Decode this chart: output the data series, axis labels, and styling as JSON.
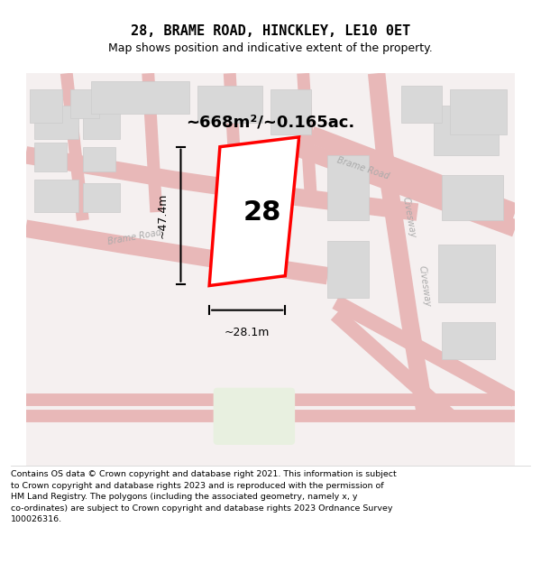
{
  "title": "28, BRAME ROAD, HINCKLEY, LE10 0ET",
  "subtitle": "Map shows position and indicative extent of the property.",
  "area_text": "~668m²/~0.165ac.",
  "number_label": "28",
  "dim_width": "~28.1m",
  "dim_height": "~47.4m",
  "disclaimer_lines": [
    "Contains OS data © Crown copyright and database right 2021. This information is subject",
    "to Crown copyright and database rights 2023 and is reproduced with the permission of",
    "HM Land Registry. The polygons (including the associated geometry, namely x, y",
    "co-ordinates) are subject to Crown copyright and database rights 2023 Ordnance Survey",
    "100026316."
  ],
  "map_bg": "#f5f0f0",
  "road_color": "#e8b8b8",
  "building_color": "#d8d8d8",
  "building_edge": "#cccccc",
  "property_color": "#ff0000",
  "green_color": "#e8f0e0",
  "fig_width": 6.0,
  "fig_height": 6.25
}
